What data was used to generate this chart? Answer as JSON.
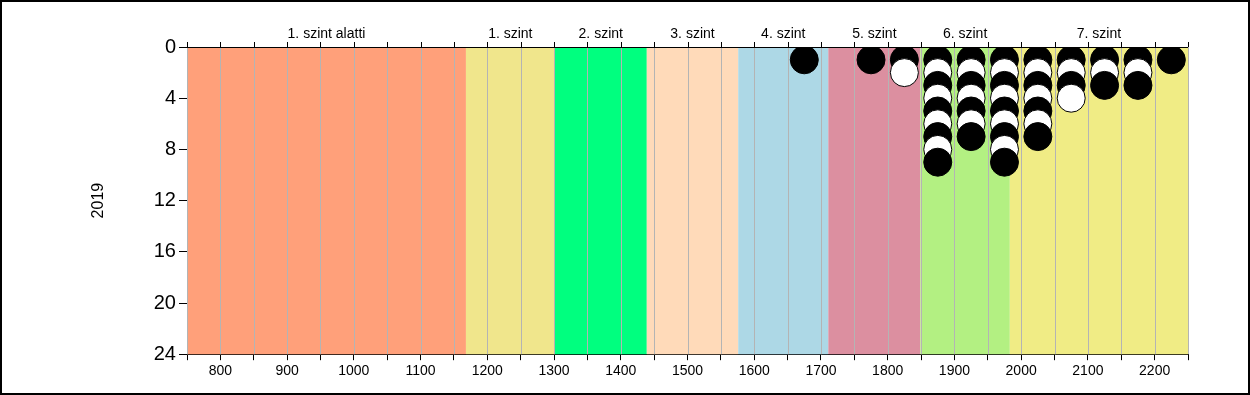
{
  "chart_data": {
    "type": "scatter",
    "ylabel": "2019",
    "marker": "circle",
    "grid": "x",
    "legend": false,
    "xlim": [
      750,
      2250
    ],
    "ylim": [
      24,
      0
    ],
    "xticks": [
      {
        "value": 750,
        "label": null
      },
      800,
      {
        "value": 850,
        "label": null
      },
      900,
      {
        "value": 950,
        "label": null
      },
      1000,
      {
        "value": 1050,
        "label": null
      },
      1100,
      {
        "value": 1150,
        "label": null
      },
      1200,
      {
        "value": 1250,
        "label": null
      },
      1300,
      {
        "value": 1350,
        "label": null
      },
      1400,
      {
        "value": 1450,
        "label": null
      },
      1500,
      {
        "value": 1550,
        "label": null
      },
      1600,
      {
        "value": 1650,
        "label": null
      },
      1700,
      {
        "value": 1750,
        "label": null
      },
      1800,
      {
        "value": 1850,
        "label": null
      },
      1900,
      {
        "value": 1950,
        "label": null
      },
      2000,
      {
        "value": 2050,
        "label": null
      },
      2100,
      {
        "value": 2150,
        "label": null
      },
      2200,
      {
        "value": 2250,
        "label": null
      }
    ],
    "yticks": [
      0,
      4,
      8,
      12,
      16,
      20,
      24
    ],
    "bands": [
      {
        "axis": "x",
        "from": 750,
        "to": 1168,
        "label": "1. szint alatti",
        "color": "#ffa07a"
      },
      {
        "axis": "x",
        "from": 1168,
        "to": 1301,
        "label": "1. szint",
        "color": "#f0e68c"
      },
      {
        "axis": "x",
        "from": 1301,
        "to": 1439,
        "label": "2. szint",
        "color": "#00ff7f"
      },
      {
        "axis": "x",
        "from": 1439,
        "to": 1576,
        "label": "3. szint",
        "color": "#ffdab9"
      },
      {
        "axis": "x",
        "from": 1576,
        "to": 1711,
        "label": "4. szint",
        "color": "#add8e6"
      },
      {
        "axis": "x",
        "from": 1711,
        "to": 1849,
        "label": "5. szint",
        "color": "#dc8fa0"
      },
      {
        "axis": "x",
        "from": 1849,
        "to": 1983,
        "label": "6. szint",
        "color": "#b3f082"
      },
      {
        "axis": "x",
        "from": 1983,
        "to": 2250,
        "label": "7. szint",
        "color": "#f0ec85"
      }
    ],
    "series": [
      {
        "x": [
          1675,
          1775,
          1825,
          1825,
          1875,
          1875,
          1875,
          1875,
          1875,
          1875,
          1875,
          1875,
          1875,
          1925,
          1925,
          1925,
          1925,
          1925,
          1925,
          1925,
          1975,
          1975,
          1975,
          1975,
          1975,
          1975,
          1975,
          1975,
          1975,
          2025,
          2025,
          2025,
          2025,
          2025,
          2025,
          2025,
          2075,
          2075,
          2075,
          2075,
          2125,
          2125,
          2125,
          2175,
          2175,
          2175,
          2225
        ],
        "values": [
          1,
          1,
          1,
          2,
          1,
          2,
          3,
          4,
          5,
          6,
          7,
          8,
          9,
          1,
          2,
          3,
          4,
          5,
          6,
          7,
          1,
          2,
          3,
          4,
          5,
          6,
          7,
          8,
          9,
          1,
          2,
          3,
          4,
          5,
          6,
          7,
          1,
          2,
          3,
          4,
          1,
          2,
          3,
          1,
          2,
          3,
          1
        ],
        "colors": [
          "#000000",
          "#000000",
          "#000000",
          "#ffffff",
          "#000000",
          "#ffffff",
          "#000000",
          "#ffffff",
          "#000000",
          "#ffffff",
          "#000000",
          "#ffffff",
          "#000000",
          "#000000",
          "#ffffff",
          "#000000",
          "#ffffff",
          "#000000",
          "#ffffff",
          "#000000",
          "#000000",
          "#ffffff",
          "#000000",
          "#ffffff",
          "#000000",
          "#ffffff",
          "#000000",
          "#ffffff",
          "#000000",
          "#000000",
          "#ffffff",
          "#000000",
          "#ffffff",
          "#000000",
          "#ffffff",
          "#000000",
          "#000000",
          "#ffffff",
          "#000000",
          "#ffffff",
          "#000000",
          "#ffffff",
          "#000000",
          "#000000",
          "#ffffff",
          "#000000",
          "#000000"
        ]
      }
    ]
  }
}
